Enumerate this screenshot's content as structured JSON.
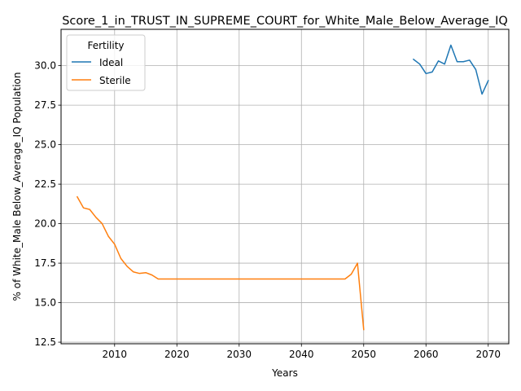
{
  "chart_data": {
    "type": "line",
    "title": "Score_1_in_TRUST_IN_SUPREME_COURT_for_White_Male_Below_Average_IQ",
    "xlabel": "Years",
    "ylabel": "% of White_Male Below_Average_IQ Population",
    "xlim": [
      2001.4,
      2073.3
    ],
    "ylim": [
      12.4,
      32.3
    ],
    "xticks": [
      2010,
      2020,
      2030,
      2040,
      2050,
      2060,
      2070
    ],
    "yticks": [
      12.5,
      15.0,
      17.5,
      20.0,
      22.5,
      25.0,
      27.5,
      30.0
    ],
    "xtick_labels": [
      "2010",
      "2020",
      "2030",
      "2040",
      "2050",
      "2060",
      "2070"
    ],
    "ytick_labels": [
      "12.5",
      "15.0",
      "17.5",
      "20.0",
      "22.5",
      "25.0",
      "27.5",
      "30.0"
    ],
    "grid": true,
    "legend": {
      "title": "Fertility",
      "placement": "top-left"
    },
    "series": [
      {
        "name": "Ideal",
        "color": "#1f77b4",
        "x": [
          2058,
          2059,
          2060,
          2061,
          2062,
          2063,
          2064,
          2065,
          2066,
          2067,
          2068,
          2069,
          2070
        ],
        "y": [
          30.4,
          30.1,
          29.5,
          29.6,
          30.3,
          30.1,
          31.3,
          30.25,
          30.25,
          30.35,
          29.75,
          28.2,
          29.05
        ]
      },
      {
        "name": "Sterile",
        "color": "#ff7f0e",
        "x": [
          2004,
          2005,
          2006,
          2007,
          2008,
          2009,
          2010,
          2011,
          2012,
          2013,
          2014,
          2015,
          2016,
          2017,
          2018,
          2019,
          2020,
          2021,
          2022,
          2023,
          2024,
          2025,
          2026,
          2027,
          2028,
          2029,
          2030,
          2031,
          2032,
          2033,
          2034,
          2035,
          2036,
          2037,
          2038,
          2039,
          2040,
          2041,
          2042,
          2043,
          2044,
          2045,
          2046,
          2047,
          2048,
          2049,
          2050
        ],
        "y": [
          21.7,
          21.0,
          20.9,
          20.4,
          20.0,
          19.2,
          18.7,
          17.8,
          17.3,
          16.95,
          16.85,
          16.9,
          16.75,
          16.5,
          16.5,
          16.5,
          16.5,
          16.5,
          16.5,
          16.5,
          16.5,
          16.5,
          16.5,
          16.5,
          16.5,
          16.5,
          16.5,
          16.5,
          16.5,
          16.5,
          16.5,
          16.5,
          16.5,
          16.5,
          16.5,
          16.5,
          16.5,
          16.5,
          16.5,
          16.5,
          16.5,
          16.5,
          16.5,
          16.5,
          16.8,
          17.5,
          13.3
        ]
      }
    ]
  }
}
